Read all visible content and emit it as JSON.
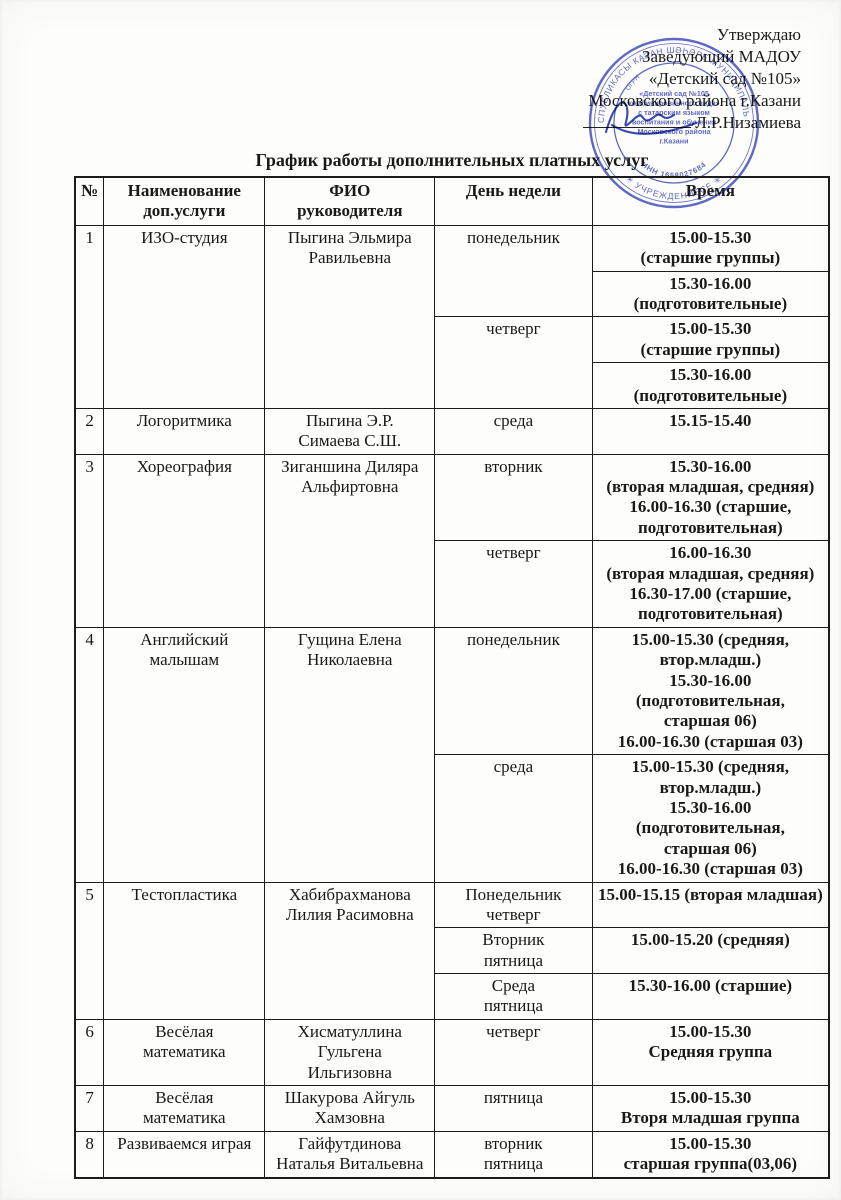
{
  "approval": {
    "lines": [
      "Утверждаю",
      "Заведующий МАДОУ",
      "«Детский сад №105»",
      "Московского района г.Казани"
    ],
    "signer_name": "Л.Р.Низамиева"
  },
  "stamp": {
    "ring_text_top": "ТАТАРСТАН РЕСПУБЛИКАСЫ КАЗАН ШӘҺӘРЕ МУНИЦИПАЛЬ АВТОНОМИЯЛЕ",
    "ring_text_bottom": "✳  УЧРЕЖДЕНИЕСЕ  ✳",
    "ogrn_text": "ОГРН",
    "inn_text": "ИНН 1658027684",
    "center_lines": [
      "«Детский сад №105",
      "комбинированного вида»",
      "с татарским языком",
      "воспитания и обучения",
      "Московского района",
      "г.Казани"
    ],
    "color": "#3a49b8"
  },
  "title": "График работы дополнительных платных услуг",
  "table": {
    "headers": [
      "№",
      "Наименование\nдоп.услуги",
      "ФИО\nруководителя",
      "День недели",
      "Время"
    ],
    "services": [
      {
        "num": "1",
        "name": "ИЗО-студия",
        "leader": "Пыгина Эльмира\nРавильевна",
        "schedule": [
          {
            "day": "понедельник",
            "times": [
              "15.00-15.30\n(старшие группы)",
              "15.30-16.00\n(подготовительные)"
            ]
          },
          {
            "day": "четверг",
            "times": [
              "15.00-15.30\n(старшие группы)",
              "15.30-16.00\n(подготовительные)"
            ]
          }
        ]
      },
      {
        "num": "2",
        "name": "Логоритмика",
        "leader": "Пыгина Э.Р.\nСимаева С.Ш.",
        "schedule": [
          {
            "day": "среда",
            "times": [
              "15.15-15.40"
            ]
          }
        ]
      },
      {
        "num": "3",
        "name": "Хореография",
        "leader": "Зиганшина Диляра\nАльфиртовна",
        "schedule": [
          {
            "day": "вторник",
            "times": [
              "15.30-16.00\n(вторая младшая, средняя)\n16.00-16.30 (старшие,\nподготовительная)"
            ]
          },
          {
            "day": "четверг",
            "times": [
              "16.00-16.30\n(вторая младшая, средняя)\n16.30-17.00 (старшие,\nподготовительная)"
            ]
          }
        ]
      },
      {
        "num": "4",
        "name": "Английский\nмалышам",
        "leader": "Гущина Елена\nНиколаевна",
        "schedule": [
          {
            "day": "понедельник",
            "times": [
              "15.00-15.30 (средняя,\nвтор.младш.)\n15.30-16.00 (подготовительная,\nстаршая 06)\n16.00-16.30 (старшая 03)"
            ]
          },
          {
            "day": "среда",
            "times": [
              "15.00-15.30 (средняя,\nвтор.младш.)\n15.30-16.00 (подготовительная,\nстаршая 06)\n16.00-16.30 (старшая 03)"
            ]
          }
        ]
      },
      {
        "num": "5",
        "name": "Тестопластика",
        "leader": "Хабибрахманова\nЛилия Расимовна",
        "schedule": [
          {
            "day": "Понедельник\nчетверг",
            "times": [
              "15.00-15.15 (вторая младшая)"
            ]
          },
          {
            "day": "Вторник\nпятница",
            "times": [
              "15.00-15.20 (средняя)"
            ]
          },
          {
            "day": "Среда\nпятница",
            "times": [
              "15.30-16.00 (старшие)"
            ]
          }
        ]
      },
      {
        "num": "6",
        "name": "Весёлая\nматематика",
        "leader": "Хисматуллина\nГульгена\nИльгизовна",
        "schedule": [
          {
            "day": "четверг",
            "times": [
              "15.00-15.30\nСредняя группа"
            ]
          }
        ]
      },
      {
        "num": "7",
        "name": "Весёлая\nматематика",
        "leader": "Шакурова Айгуль\nХамзовна",
        "schedule": [
          {
            "day": "пятница",
            "times": [
              "15.00-15.30\nВторя младшая группа"
            ]
          }
        ]
      },
      {
        "num": "8",
        "name": "Развиваемся играя",
        "leader": "Гайфутдинова\nНаталья Витальевна",
        "schedule": [
          {
            "day": "вторник\nпятница",
            "times": [
              "15.00-15.30\nстаршая группа(03,06)"
            ]
          }
        ]
      }
    ]
  }
}
